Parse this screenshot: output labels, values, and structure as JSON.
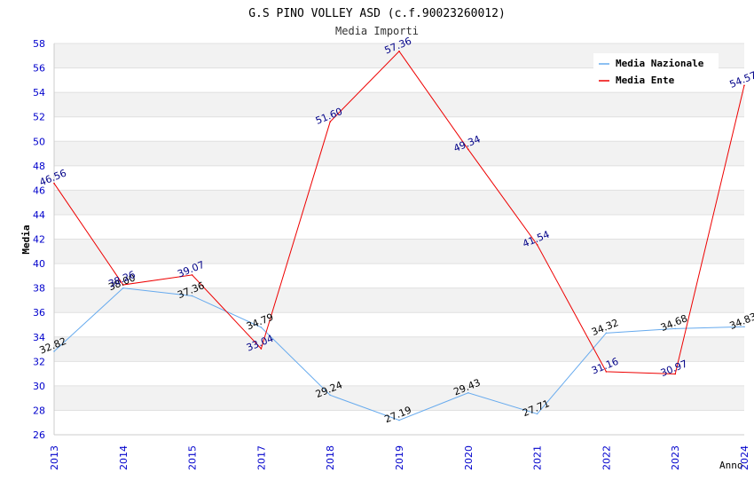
{
  "chart_data": {
    "type": "line",
    "title": "G.S PINO VOLLEY ASD (c.f.90023260012)",
    "subtitle": "Media Importi",
    "xlabel": "Anno",
    "ylabel": "Media",
    "categories": [
      "2013",
      "2014",
      "2015",
      "2017",
      "2018",
      "2019",
      "2020",
      "2021",
      "2022",
      "2023",
      "2024"
    ],
    "ylim": [
      26,
      58
    ],
    "yticks": [
      26,
      28,
      30,
      32,
      34,
      36,
      38,
      40,
      42,
      44,
      46,
      48,
      50,
      52,
      54,
      56,
      58
    ],
    "grid": "horizontal alternating bands",
    "legend_position": "top-right",
    "series": [
      {
        "name": "Media Nazionale",
        "color": "#66aaee",
        "label_color": "#000000",
        "values": [
          32.82,
          38.0,
          37.36,
          34.79,
          29.24,
          27.19,
          29.43,
          27.71,
          34.32,
          34.68,
          34.83
        ],
        "labels": [
          "32.82",
          "38.00",
          "37.36",
          "34.79",
          "29.24",
          "27.19",
          "29.43",
          "27.71",
          "34.32",
          "34.68",
          "34.83"
        ]
      },
      {
        "name": "Media Ente",
        "color": "#ee0000",
        "label_color": "#000088",
        "values": [
          46.56,
          38.26,
          39.07,
          33.04,
          51.6,
          57.36,
          49.34,
          41.54,
          31.16,
          30.97,
          54.57
        ],
        "labels": [
          "46.56",
          "38.26",
          "39.07",
          "33.04",
          "51.60",
          "57.36",
          "49.34",
          "41.54",
          "31.16",
          "30.97",
          "54.57"
        ]
      }
    ]
  }
}
